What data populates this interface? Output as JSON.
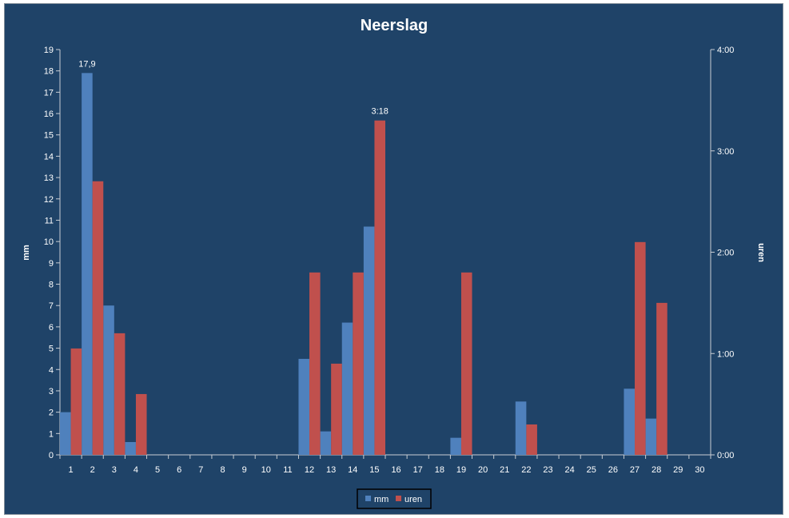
{
  "chart_data": {
    "type": "bar",
    "title": "Neerslag",
    "ylabel": "mm",
    "y2label": "uren",
    "xlabel": "",
    "categories": [
      "1",
      "2",
      "3",
      "4",
      "5",
      "6",
      "7",
      "8",
      "9",
      "10",
      "11",
      "12",
      "13",
      "14",
      "15",
      "16",
      "17",
      "18",
      "19",
      "20",
      "21",
      "22",
      "23",
      "24",
      "25",
      "26",
      "27",
      "28",
      "29",
      "30"
    ],
    "ylim": [
      0,
      19
    ],
    "y_ticks": [
      "0",
      "1",
      "2",
      "3",
      "4",
      "5",
      "6",
      "7",
      "8",
      "9",
      "10",
      "11",
      "12",
      "13",
      "14",
      "15",
      "16",
      "17",
      "18",
      "19"
    ],
    "y2lim_hours": [
      0,
      4
    ],
    "y2_ticks": [
      "0:00",
      "1:00",
      "2:00",
      "3:00",
      "4:00"
    ],
    "grid": false,
    "legend_position": "bottom",
    "series": [
      {
        "name": "mm",
        "axis": "left",
        "color": "#4f81bd",
        "values": [
          2.0,
          17.9,
          7.0,
          0.6,
          0,
          0,
          0,
          0,
          0,
          0,
          0,
          4.5,
          1.1,
          6.2,
          10.7,
          0,
          0,
          0,
          0.8,
          0,
          0,
          2.5,
          0,
          0,
          0,
          0,
          3.1,
          1.7,
          0,
          0
        ]
      },
      {
        "name": "uren",
        "axis": "right",
        "color": "#c0504d",
        "values": [
          1.05,
          2.7,
          1.2,
          0.6,
          0,
          0,
          0,
          0,
          0,
          0,
          0,
          1.8,
          0.9,
          1.8,
          3.3,
          0,
          0,
          0,
          1.8,
          0,
          0,
          0.3,
          0,
          0,
          0,
          0,
          2.1,
          1.5,
          0,
          0
        ]
      }
    ],
    "annotations": [
      {
        "series": "mm",
        "category": "2",
        "text": "17,9"
      },
      {
        "series": "uren",
        "category": "15",
        "text": "3:18"
      }
    ]
  }
}
